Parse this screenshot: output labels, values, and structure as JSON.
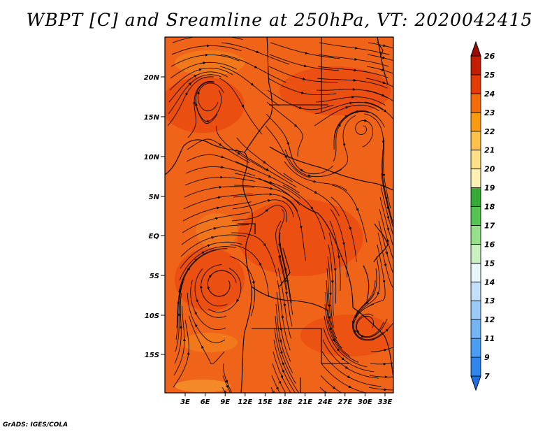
{
  "title": "WBPT [C] and Sreamline at 250hPa, VT: 2020042415",
  "credit": "GrADS: IGES/COLA",
  "map": {
    "lat_ticks": [
      "20N",
      "15N",
      "10N",
      "5N",
      "EQ",
      "5S",
      "10S",
      "15S"
    ],
    "lon_ticks": [
      "3E",
      "6E",
      "9E",
      "12E",
      "15E",
      "18E",
      "21E",
      "24E",
      "27E",
      "30E",
      "33E"
    ],
    "lat_range": [
      -19.5,
      24.5
    ],
    "lon_range": [
      0,
      35
    ]
  },
  "colorbar": {
    "labels": [
      "7",
      "9",
      "11",
      "12",
      "13",
      "14",
      "15",
      "16",
      "17",
      "18",
      "19",
      "20",
      "21",
      "22",
      "23",
      "24",
      "25",
      "26"
    ],
    "colors": [
      "#1e6fe0",
      "#2f87ee",
      "#4a9df2",
      "#73b4f5",
      "#9ccaf7",
      "#c3e0fa",
      "#e8f6fa",
      "#c8f0c0",
      "#96e08c",
      "#55c452",
      "#36aa36",
      "#fbf2b2",
      "#fde085",
      "#fcc14a",
      "#fa9a10",
      "#f46c08",
      "#e43c04",
      "#c41e02",
      "#9c0a02"
    ]
  }
}
